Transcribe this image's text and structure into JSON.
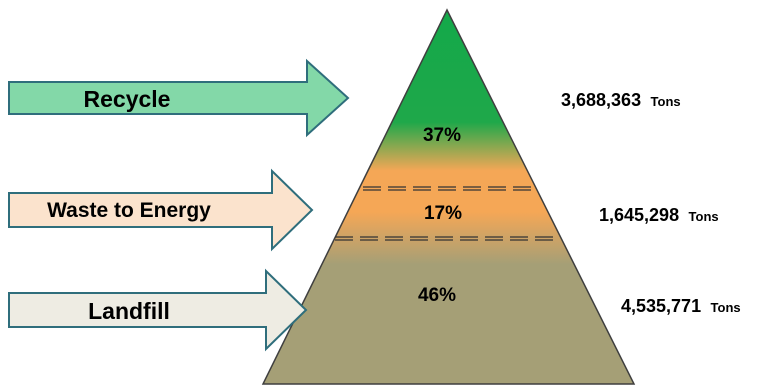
{
  "tiers": [
    {
      "arrow_label": "Recycle",
      "percent": "37%",
      "amount": "3,688,363",
      "unit": "Tons",
      "arrow_fill": "#83d8a8",
      "arrow_stroke": "#2f6e7c"
    },
    {
      "arrow_label": "Waste to Energy",
      "percent": "17%",
      "amount": "1,645,298",
      "unit": "Tons",
      "arrow_fill": "#fbe3cd",
      "arrow_stroke": "#2f6e7c"
    },
    {
      "arrow_label": "Landfill",
      "percent": "46%",
      "amount": "4,535,771",
      "unit": "Tons",
      "arrow_fill": "#eeece3",
      "arrow_stroke": "#2f6e7c"
    }
  ],
  "colors": {
    "green_top": "#13a94a",
    "green_mid": "#1fa84a",
    "orange": "#f5a756",
    "olive": "#a59f76",
    "pyramid_outline": "#3f3f3f"
  }
}
